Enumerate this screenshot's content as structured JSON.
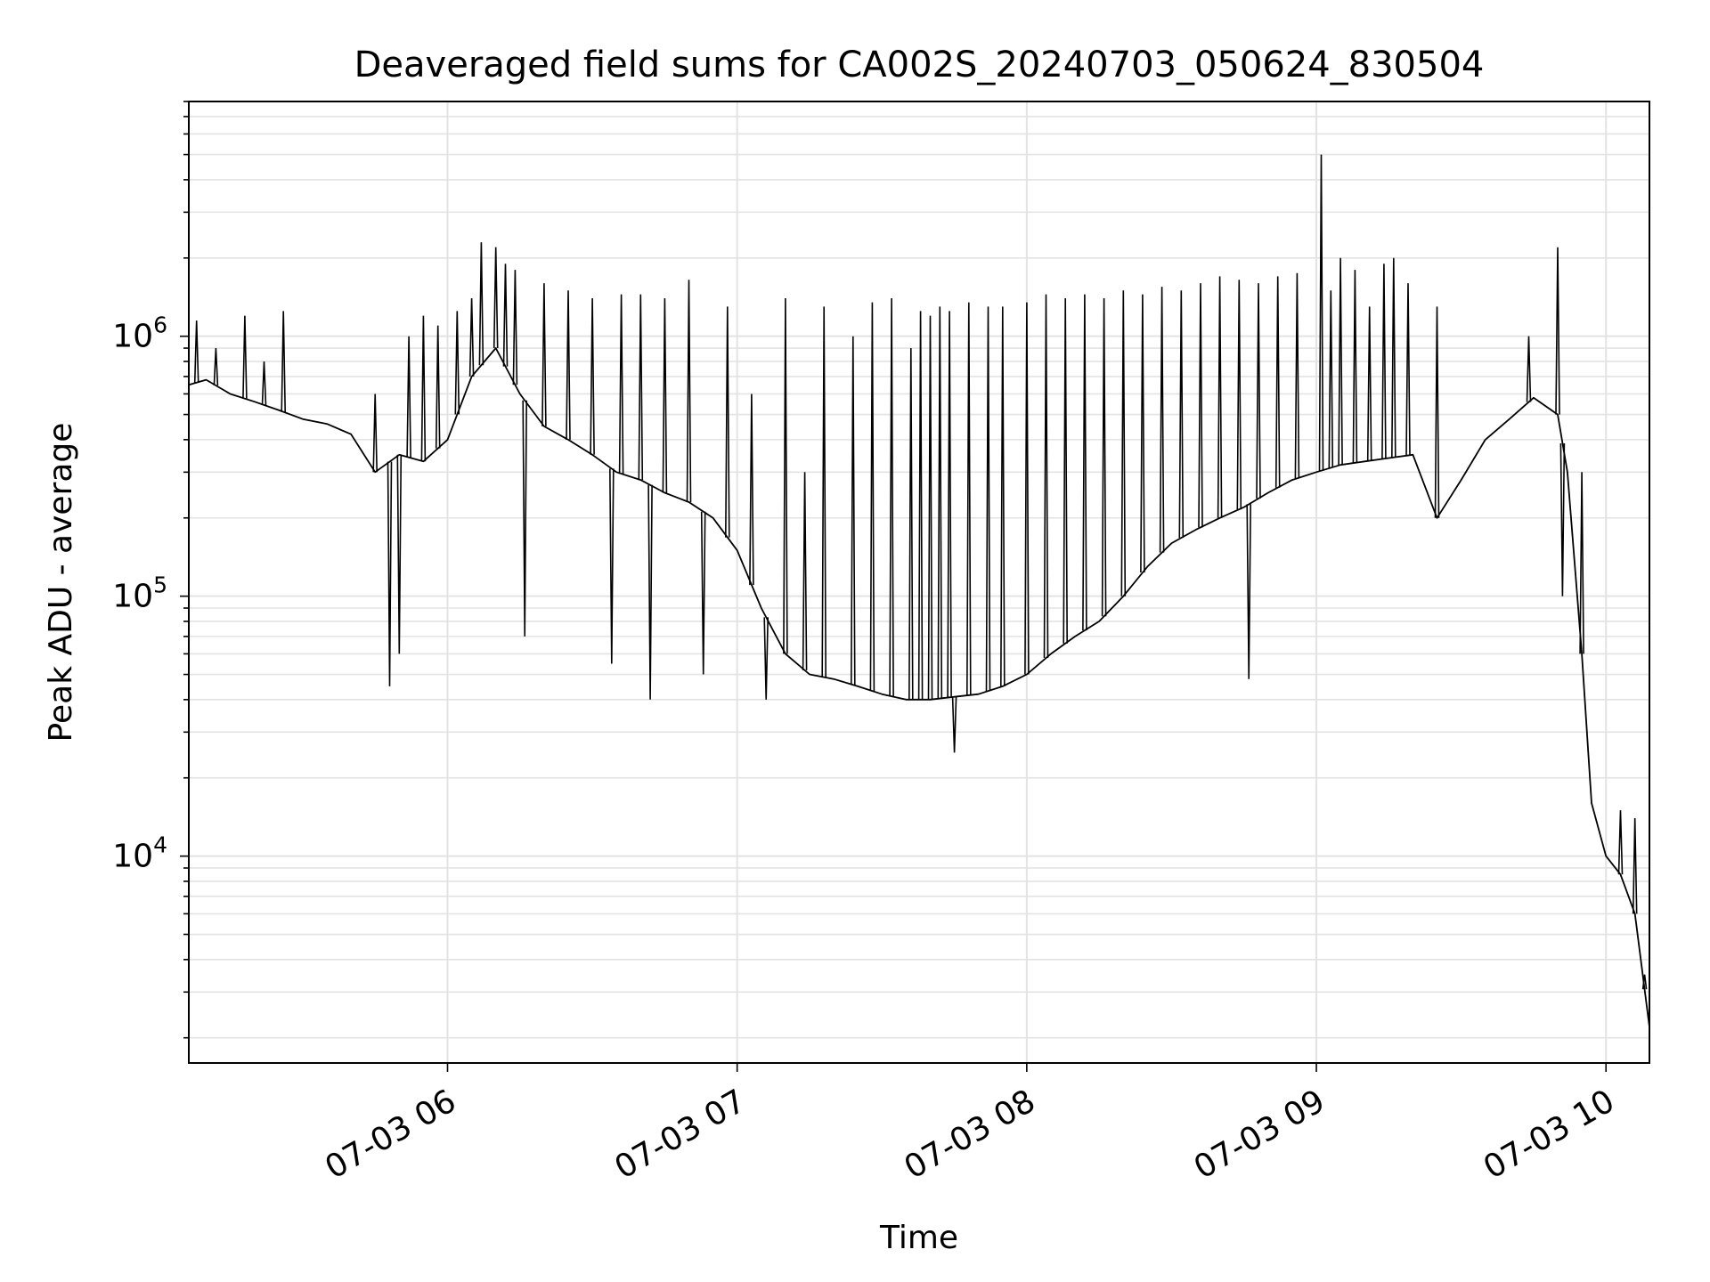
{
  "chart_data": {
    "type": "line",
    "title": "Deaveraged field sums for CA002S_20240703_050624_830504",
    "xlabel": "Time",
    "ylabel": "Peak ADU - average",
    "yscale": "log",
    "ylim": [
      1600,
      8000000
    ],
    "xlim": [
      "07-03 05:06:24",
      "07-03 10:09"
    ],
    "grid": true,
    "line_color": "#000000",
    "xticks": [
      {
        "t": "07-03 06:00",
        "label": "07-03 06"
      },
      {
        "t": "07-03 07:00",
        "label": "07-03 07"
      },
      {
        "t": "07-03 08:00",
        "label": "07-03 08"
      },
      {
        "t": "07-03 09:00",
        "label": "07-03 09"
      },
      {
        "t": "07-03 10:00",
        "label": "07-03 10"
      }
    ],
    "yticks": [
      {
        "value": 10000,
        "base": "10",
        "exp": "4"
      },
      {
        "value": 100000,
        "base": "10",
        "exp": "5"
      },
      {
        "value": 1000000,
        "base": "10",
        "exp": "6"
      }
    ],
    "series": [
      {
        "x": [
          "07-03 05:06:24",
          "07-03 05:10",
          "07-03 05:15",
          "07-03 05:20",
          "07-03 05:25",
          "07-03 05:30",
          "07-03 05:35",
          "07-03 05:40",
          "07-03 05:45",
          "07-03 05:50",
          "07-03 05:55",
          "07-03 06:00",
          "07-03 06:05",
          "07-03 06:10",
          "07-03 06:15",
          "07-03 06:20",
          "07-03 06:25",
          "07-03 06:30",
          "07-03 06:35",
          "07-03 06:40",
          "07-03 06:45",
          "07-03 06:50",
          "07-03 06:55",
          "07-03 07:00",
          "07-03 07:05",
          "07-03 07:10",
          "07-03 07:15",
          "07-03 07:20",
          "07-03 07:25",
          "07-03 07:30",
          "07-03 07:35",
          "07-03 07:40",
          "07-03 07:45",
          "07-03 07:50",
          "07-03 07:55",
          "07-03 08:00",
          "07-03 08:05",
          "07-03 08:10",
          "07-03 08:15",
          "07-03 08:20",
          "07-03 08:25",
          "07-03 08:30",
          "07-03 08:35",
          "07-03 08:40",
          "07-03 08:45",
          "07-03 08:50",
          "07-03 08:55",
          "07-03 09:00",
          "07-03 09:05",
          "07-03 09:10",
          "07-03 09:15",
          "07-03 09:20",
          "07-03 09:25",
          "07-03 09:30",
          "07-03 09:35",
          "07-03 09:40",
          "07-03 09:45",
          "07-03 09:50",
          "07-03 09:52",
          "07-03 09:55",
          "07-03 09:57",
          "07-03 10:00",
          "07-03 10:03",
          "07-03 10:06",
          "07-03 10:09"
        ],
        "y": [
          650000,
          680000,
          600000,
          560000,
          520000,
          480000,
          460000,
          420000,
          300000,
          350000,
          330000,
          400000,
          700000,
          900000,
          600000,
          450000,
          400000,
          350000,
          300000,
          280000,
          250000,
          230000,
          200000,
          150000,
          90000,
          60000,
          50000,
          48000,
          45000,
          42000,
          40000,
          40000,
          41000,
          42000,
          45000,
          50000,
          60000,
          70000,
          80000,
          100000,
          130000,
          160000,
          180000,
          200000,
          220000,
          250000,
          280000,
          300000,
          320000,
          330000,
          340000,
          350000,
          200000,
          280000,
          400000,
          480000,
          580000,
          500000,
          300000,
          60000,
          16000,
          10000,
          8500,
          6000,
          2200
        ],
        "peaks": [
          [
            "07-03 05:08",
            1150000
          ],
          [
            "07-03 05:12",
            900000
          ],
          [
            "07-03 05:18",
            1200000
          ],
          [
            "07-03 05:22",
            800000
          ],
          [
            "07-03 05:26",
            1250000
          ],
          [
            "07-03 05:45",
            600000
          ],
          [
            "07-03 05:48",
            45000
          ],
          [
            "07-03 05:50",
            60000
          ],
          [
            "07-03 05:52",
            1000000
          ],
          [
            "07-03 05:55",
            1200000
          ],
          [
            "07-03 05:58",
            1100000
          ],
          [
            "07-03 06:02",
            1250000
          ],
          [
            "07-03 06:05",
            1400000
          ],
          [
            "07-03 06:07",
            2300000
          ],
          [
            "07-03 06:10",
            2200000
          ],
          [
            "07-03 06:12",
            1900000
          ],
          [
            "07-03 06:14",
            1800000
          ],
          [
            "07-03 06:16",
            70000
          ],
          [
            "07-03 06:20",
            1600000
          ],
          [
            "07-03 06:25",
            1500000
          ],
          [
            "07-03 06:30",
            1400000
          ],
          [
            "07-03 06:34",
            55000
          ],
          [
            "07-03 06:36",
            1450000
          ],
          [
            "07-03 06:40",
            1450000
          ],
          [
            "07-03 06:42",
            40000
          ],
          [
            "07-03 06:45",
            1400000
          ],
          [
            "07-03 06:50",
            1650000
          ],
          [
            "07-03 06:53",
            50000
          ],
          [
            "07-03 06:58",
            1300000
          ],
          [
            "07-03 07:03",
            600000
          ],
          [
            "07-03 07:06",
            40000
          ],
          [
            "07-03 07:10",
            1400000
          ],
          [
            "07-03 07:14",
            300000
          ],
          [
            "07-03 07:18",
            1300000
          ],
          [
            "07-03 07:24",
            1000000
          ],
          [
            "07-03 07:28",
            1350000
          ],
          [
            "07-03 07:32",
            1400000
          ],
          [
            "07-03 07:36",
            900000
          ],
          [
            "07-03 07:38",
            1250000
          ],
          [
            "07-03 07:40",
            1200000
          ],
          [
            "07-03 07:42",
            1300000
          ],
          [
            "07-03 07:44",
            1250000
          ],
          [
            "07-03 07:45",
            25000
          ],
          [
            "07-03 07:48",
            1350000
          ],
          [
            "07-03 07:52",
            1300000
          ],
          [
            "07-03 07:55",
            1300000
          ],
          [
            "07-03 08:00",
            1350000
          ],
          [
            "07-03 08:04",
            1450000
          ],
          [
            "07-03 08:08",
            1400000
          ],
          [
            "07-03 08:12",
            1450000
          ],
          [
            "07-03 08:16",
            1400000
          ],
          [
            "07-03 08:20",
            1500000
          ],
          [
            "07-03 08:24",
            1450000
          ],
          [
            "07-03 08:28",
            1550000
          ],
          [
            "07-03 08:32",
            1500000
          ],
          [
            "07-03 08:36",
            1600000
          ],
          [
            "07-03 08:40",
            1700000
          ],
          [
            "07-03 08:44",
            1650000
          ],
          [
            "07-03 08:46",
            48000
          ],
          [
            "07-03 08:48",
            1600000
          ],
          [
            "07-03 08:52",
            1700000
          ],
          [
            "07-03 08:56",
            1750000
          ],
          [
            "07-03 09:01",
            5000000
          ],
          [
            "07-03 09:03",
            1500000
          ],
          [
            "07-03 09:05",
            2000000
          ],
          [
            "07-03 09:08",
            1800000
          ],
          [
            "07-03 09:11",
            1300000
          ],
          [
            "07-03 09:14",
            1900000
          ],
          [
            "07-03 09:16",
            2000000
          ],
          [
            "07-03 09:19",
            1600000
          ],
          [
            "07-03 09:25",
            1300000
          ],
          [
            "07-03 09:44",
            1000000
          ],
          [
            "07-03 09:50",
            2200000
          ],
          [
            "07-03 09:51",
            100000
          ],
          [
            "07-03 09:55",
            300000
          ],
          [
            "07-03 10:03",
            15000
          ],
          [
            "07-03 10:06",
            14000
          ],
          [
            "07-03 10:08",
            3500
          ]
        ]
      }
    ]
  }
}
